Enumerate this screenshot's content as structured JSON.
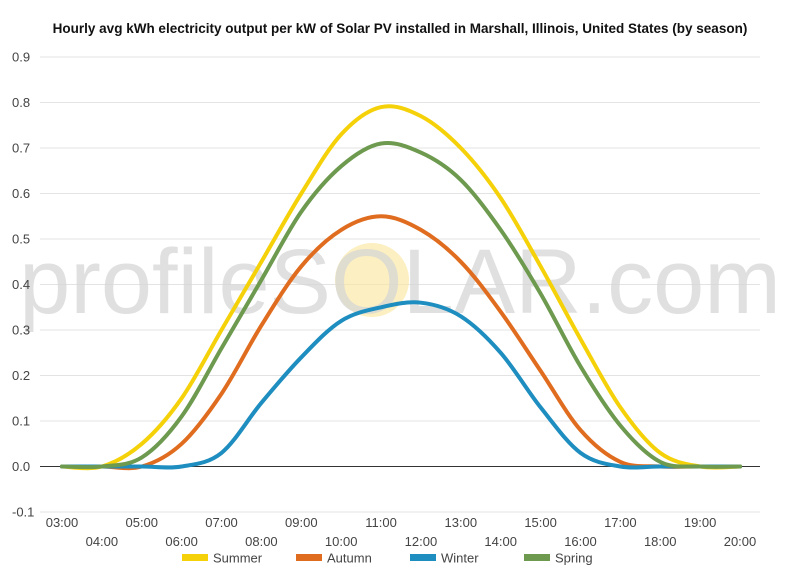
{
  "chart_data": {
    "type": "line",
    "title": "Hourly avg kWh electricity output per kW of Solar PV installed in Marshall, Illinois, United States (by season)",
    "xlabel": "",
    "ylabel": "",
    "ylim": [
      -0.1,
      0.9
    ],
    "y_ticks": [
      "-0.1",
      "0.0",
      "0.1",
      "0.2",
      "0.3",
      "0.4",
      "0.5",
      "0.6",
      "0.7",
      "0.8",
      "0.9"
    ],
    "categories": [
      "03:00",
      "04:00",
      "05:00",
      "06:00",
      "07:00",
      "08:00",
      "09:00",
      "10:00",
      "11:00",
      "12:00",
      "13:00",
      "14:00",
      "15:00",
      "16:00",
      "17:00",
      "18:00",
      "19:00",
      "20:00"
    ],
    "grid": true,
    "legend_position": "bottom",
    "watermark": "profileSOLAR.com",
    "series": [
      {
        "name": "Summer",
        "color": "#f5d10a",
        "values": [
          0.0,
          0.0,
          0.05,
          0.15,
          0.3,
          0.45,
          0.6,
          0.73,
          0.79,
          0.77,
          0.7,
          0.59,
          0.44,
          0.28,
          0.13,
          0.03,
          0.0,
          0.0
        ]
      },
      {
        "name": "Autumn",
        "color": "#e06d1f",
        "values": [
          0.0,
          0.0,
          0.0,
          0.05,
          0.16,
          0.31,
          0.44,
          0.52,
          0.55,
          0.52,
          0.45,
          0.34,
          0.21,
          0.08,
          0.01,
          0.0,
          0.0,
          0.0
        ]
      },
      {
        "name": "Winter",
        "color": "#1e8dbf",
        "values": [
          0.0,
          0.0,
          0.0,
          0.0,
          0.03,
          0.14,
          0.24,
          0.32,
          0.35,
          0.36,
          0.33,
          0.25,
          0.13,
          0.03,
          0.0,
          0.0,
          0.0,
          0.0
        ]
      },
      {
        "name": "Spring",
        "color": "#6d9a4f",
        "values": [
          0.0,
          0.0,
          0.02,
          0.11,
          0.26,
          0.41,
          0.56,
          0.66,
          0.71,
          0.69,
          0.63,
          0.52,
          0.38,
          0.22,
          0.09,
          0.01,
          0.0,
          0.0
        ]
      }
    ]
  }
}
